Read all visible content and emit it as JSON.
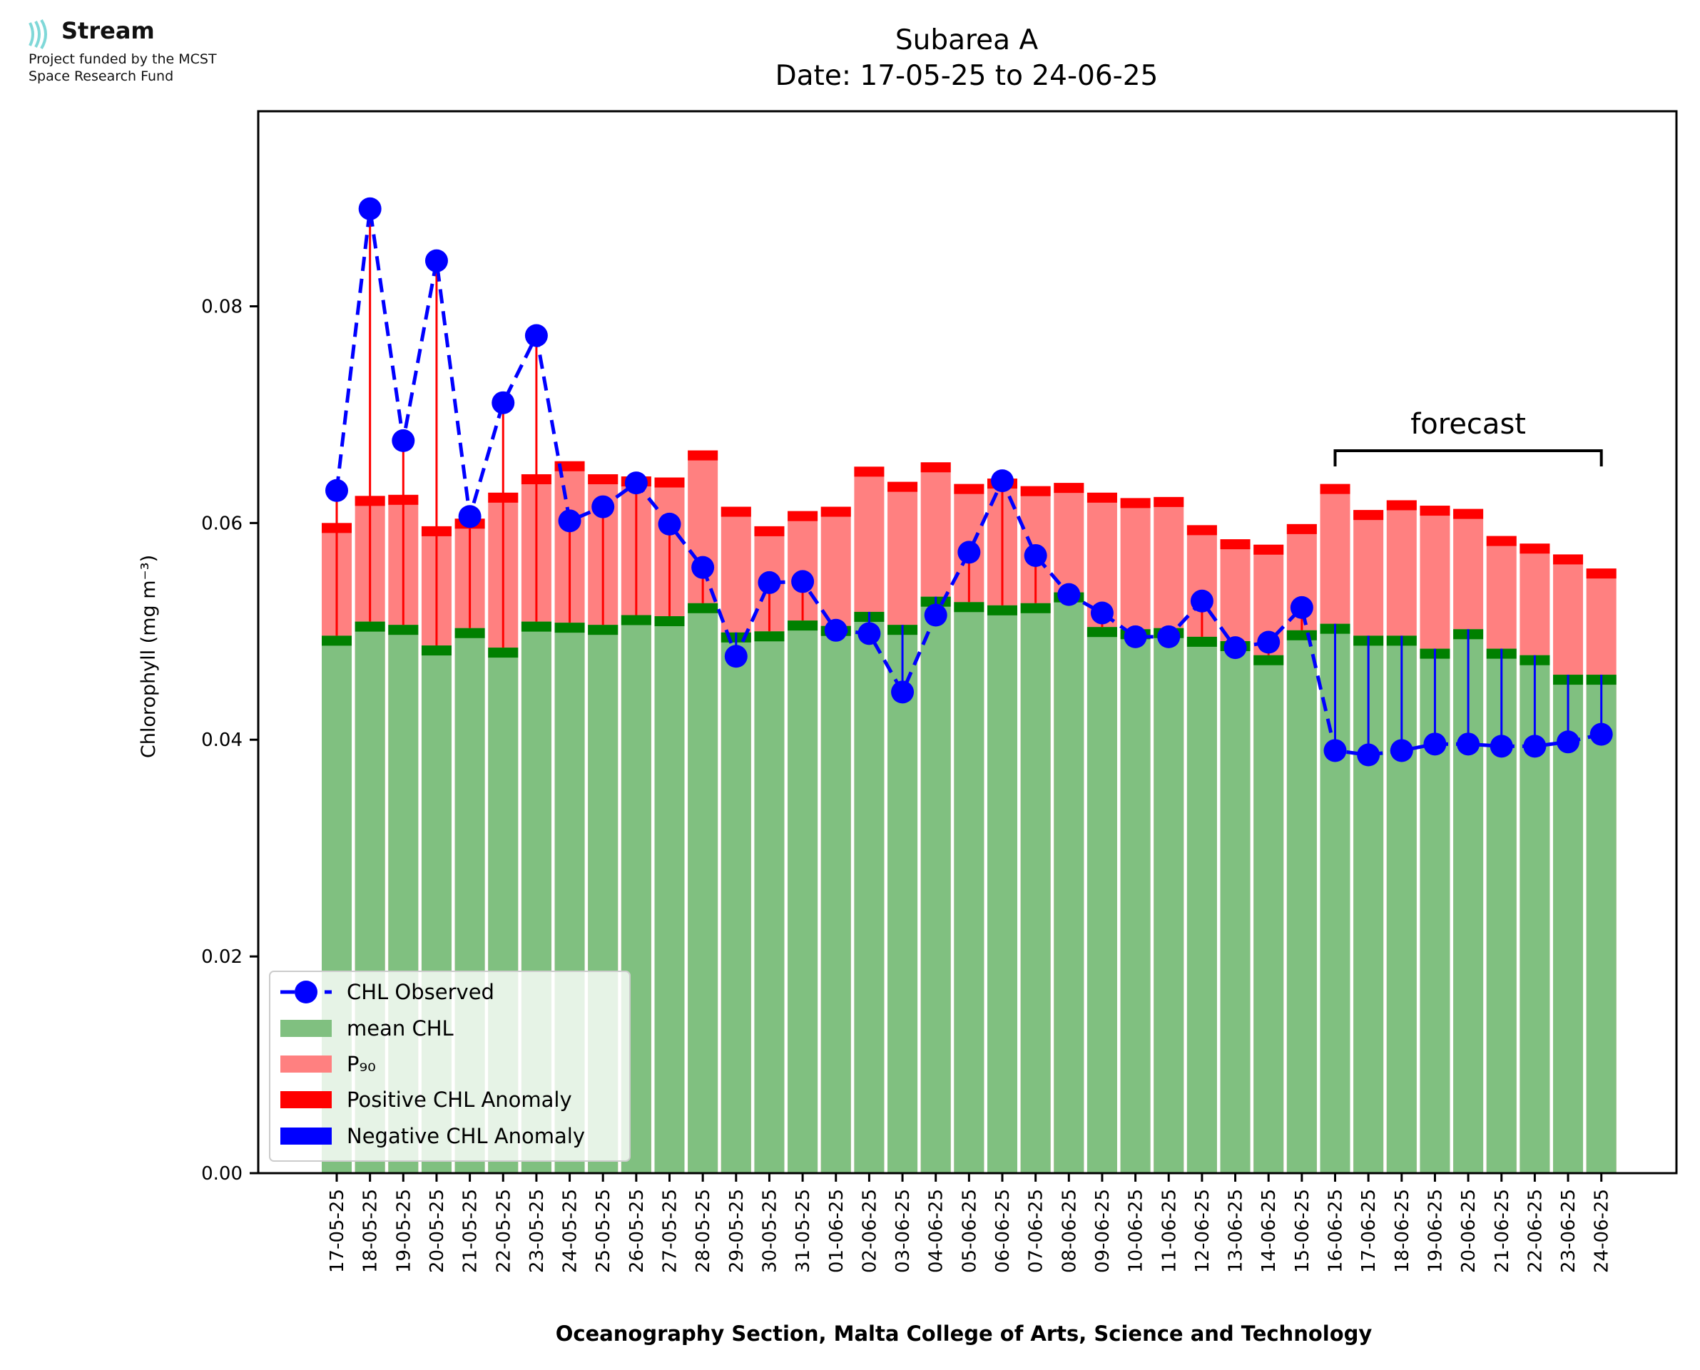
{
  "logo": {
    "name": "Stream",
    "line1": "Project funded by the MCST",
    "line2": "Space Research Fund",
    "icon": "stream-waves-icon",
    "icon_color": "#7fd8d8"
  },
  "chart_data": {
    "type": "bar",
    "title": "Subarea A",
    "subtitle": "Date: 17-05-25 to 24-06-25",
    "xlabel": "Oceanography Section, Malta College of Arts, Science and Technology",
    "ylabel": "Chlorophyll (mg m⁻³)",
    "ylim": [
      0,
      0.098
    ],
    "yticks": [
      0.0,
      0.02,
      0.04,
      0.06,
      0.08
    ],
    "ytick_labels": [
      "0.00",
      "0.02",
      "0.04",
      "0.06",
      "0.08"
    ],
    "grid": false,
    "legend_position": "lower-left",
    "categories": [
      "17-05-25",
      "18-05-25",
      "19-05-25",
      "20-05-25",
      "21-05-25",
      "22-05-25",
      "23-05-25",
      "24-05-25",
      "25-05-25",
      "26-05-25",
      "27-05-25",
      "28-05-25",
      "29-05-25",
      "30-05-25",
      "31-05-25",
      "01-06-25",
      "02-06-25",
      "03-06-25",
      "04-06-25",
      "05-06-25",
      "06-06-25",
      "07-06-25",
      "08-06-25",
      "09-06-25",
      "10-06-25",
      "11-06-25",
      "12-06-25",
      "13-06-25",
      "14-06-25",
      "15-06-25",
      "16-06-25",
      "17-06-25",
      "18-06-25",
      "19-06-25",
      "20-06-25",
      "21-06-25",
      "22-06-25",
      "23-06-25",
      "24-06-25"
    ],
    "series": [
      {
        "name": "CHL Observed",
        "color": "#0000ff",
        "style": "dashed-line-with-markers",
        "values": [
          0.063,
          0.089,
          0.0676,
          0.0842,
          0.0606,
          0.0711,
          0.0773,
          0.0602,
          0.0615,
          0.0637,
          0.0599,
          0.0559,
          0.0477,
          0.0545,
          0.0546,
          0.0501,
          0.0498,
          0.0444,
          0.0515,
          0.0573,
          0.0639,
          0.057,
          0.0534,
          0.0517,
          0.0495,
          0.0495,
          0.0528,
          0.0485,
          0.049,
          0.0522,
          0.039,
          0.0386,
          0.039,
          0.0396,
          0.0396,
          0.0394,
          0.0394,
          0.0398,
          0.0405
        ]
      },
      {
        "name": "mean CHL",
        "color": "#80c080",
        "values": [
          0.0496,
          0.0509,
          0.0506,
          0.0487,
          0.0503,
          0.0485,
          0.0509,
          0.0508,
          0.0506,
          0.0515,
          0.0514,
          0.0526,
          0.0499,
          0.05,
          0.051,
          0.0505,
          0.0518,
          0.0506,
          0.0532,
          0.0527,
          0.0524,
          0.0526,
          0.0536,
          0.0504,
          0.0502,
          0.0503,
          0.0495,
          0.0491,
          0.0478,
          0.0501,
          0.0507,
          0.0496,
          0.0496,
          0.0484,
          0.0502,
          0.0484,
          0.0478,
          0.046,
          0.046
        ]
      },
      {
        "name": "P₉₀",
        "color": "#ff8080",
        "values": [
          0.06,
          0.0625,
          0.0626,
          0.0597,
          0.0604,
          0.0628,
          0.0645,
          0.0657,
          0.0645,
          0.0643,
          0.0642,
          0.0667,
          0.0615,
          0.0597,
          0.0611,
          0.0615,
          0.0652,
          0.0638,
          0.0656,
          0.0636,
          0.0641,
          0.0634,
          0.0637,
          0.0628,
          0.0623,
          0.0624,
          0.0598,
          0.0585,
          0.058,
          0.0599,
          0.0636,
          0.0612,
          0.0621,
          0.0616,
          0.0613,
          0.0588,
          0.0581,
          0.0571,
          0.0558
        ]
      },
      {
        "name": "Positive CHL Anomaly",
        "color": "#ff0000"
      },
      {
        "name": "Negative CHL Anomaly",
        "color": "#0000ff"
      }
    ],
    "annotations": [
      {
        "text": "forecast",
        "from": "16-06-25",
        "to": "24-06-25"
      }
    ]
  }
}
